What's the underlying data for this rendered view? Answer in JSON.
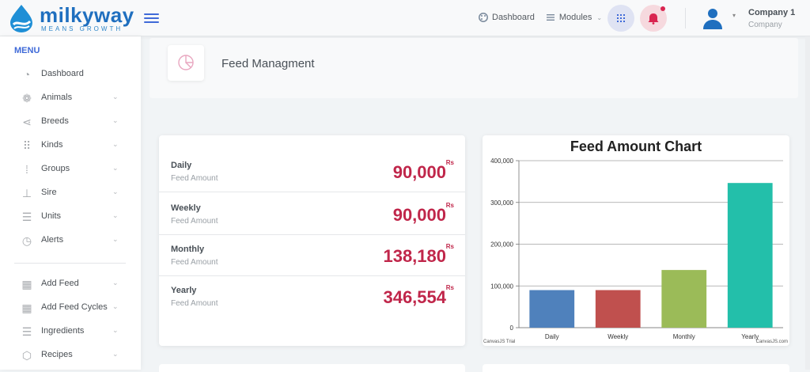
{
  "brand": {
    "name": "milkyway",
    "tagline": "MEANS GROWTH",
    "color": "#1f6fbf"
  },
  "header": {
    "nav": [
      {
        "label": "Dashboard",
        "icon": "palette-icon"
      },
      {
        "label": "Modules",
        "icon": "list-icon"
      }
    ],
    "user": {
      "name": "Company 1",
      "role": "Company"
    }
  },
  "sidebar": {
    "menu_title": "MENU",
    "items": [
      {
        "label": "Dashboard",
        "icon": "pie-icon",
        "chevron": false
      },
      {
        "label": "Animals",
        "icon": "paw-icon",
        "chevron": true
      },
      {
        "label": "Breeds",
        "icon": "share-icon",
        "chevron": true
      },
      {
        "label": "Kinds",
        "icon": "grid-icon",
        "chevron": true
      },
      {
        "label": "Groups",
        "icon": "dots-grid-icon",
        "chevron": true
      },
      {
        "label": "Sire",
        "icon": "hierarchy-icon",
        "chevron": true
      },
      {
        "label": "Units",
        "icon": "sliders-icon",
        "chevron": true
      },
      {
        "label": "Alerts",
        "icon": "clock-icon",
        "chevron": true
      },
      {
        "label": "Add Feed",
        "icon": "calendar-icon",
        "chevron": true
      },
      {
        "label": "Add Feed Cycles",
        "icon": "calendar-grid-icon",
        "chevron": true
      },
      {
        "label": "Ingredients",
        "icon": "sliders-icon",
        "chevron": true
      },
      {
        "label": "Recipes",
        "icon": "box-icon",
        "chevron": true
      }
    ]
  },
  "page": {
    "title": "Feed Managment"
  },
  "stats": [
    {
      "label": "Daily",
      "sub": "Feed Amount",
      "value": "90,000",
      "unit": "Rs"
    },
    {
      "label": "Weekly",
      "sub": "Feed Amount",
      "value": "90,000",
      "unit": "Rs"
    },
    {
      "label": "Monthly",
      "sub": "Feed Amount",
      "value": "138,180",
      "unit": "Rs"
    },
    {
      "label": "Yearly",
      "sub": "Feed Amount",
      "value": "346,554",
      "unit": "Rs"
    }
  ],
  "chart_data": {
    "type": "bar",
    "title": "Feed Amount Chart",
    "categories": [
      "Daily",
      "Weekly",
      "Monthly",
      "Yearly"
    ],
    "values": [
      90000,
      90000,
      138180,
      346554
    ],
    "colors": [
      "#4f81bc",
      "#c0504e",
      "#9bbb58",
      "#23bfaa"
    ],
    "ylim": [
      0,
      400000
    ],
    "yticks": [
      "0",
      "100,000",
      "200,000",
      "300,000",
      "400,000"
    ],
    "grid": true,
    "watermark_left": "CanvasJS Trial",
    "watermark_right": "CanvasJS.com"
  }
}
